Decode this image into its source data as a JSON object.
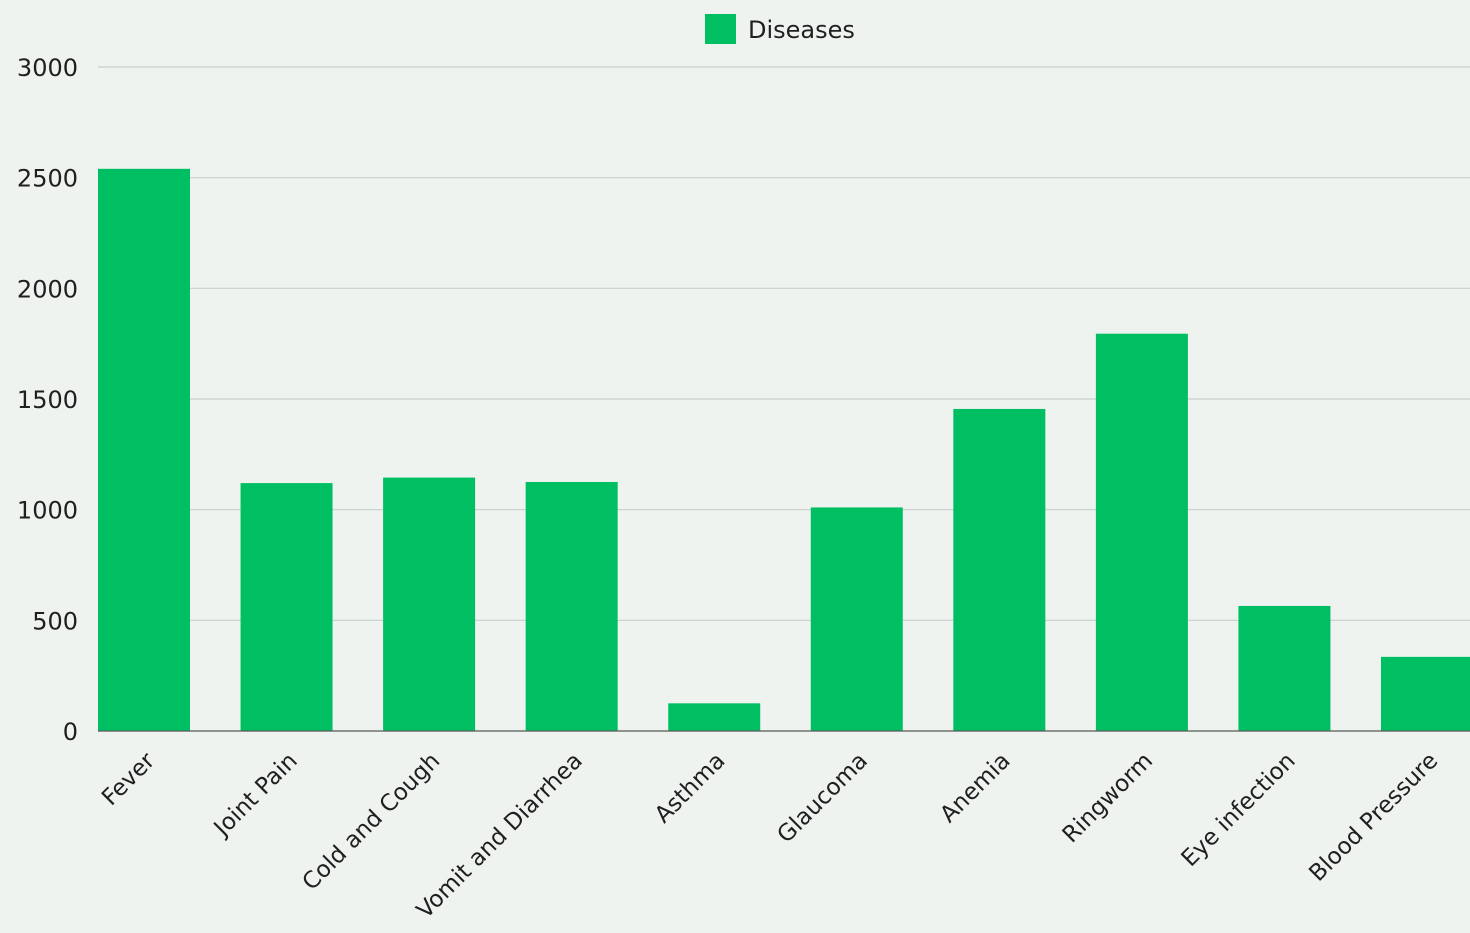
{
  "chart_data": {
    "type": "bar",
    "categories": [
      "Fever",
      "Joint Pain",
      "Cold and Cough",
      "Vomit and Diarrhea",
      "Asthma",
      "Glaucoma",
      "Anemia",
      "Ringworm",
      "Eye infection",
      "Blood Pressure"
    ],
    "series": [
      {
        "name": "Diseases",
        "values": [
          2540,
          1120,
          1145,
          1125,
          125,
          1010,
          1455,
          1795,
          565,
          335
        ]
      }
    ],
    "ylim": [
      0,
      3000
    ],
    "yticks": [
      0,
      500,
      1000,
      1500,
      2000,
      2500,
      3000
    ],
    "grid": true,
    "legend_position": "top-center",
    "colors": {
      "bar": "#00bf63",
      "background": "#eef3f0",
      "grid": "#c8cfcb"
    }
  }
}
